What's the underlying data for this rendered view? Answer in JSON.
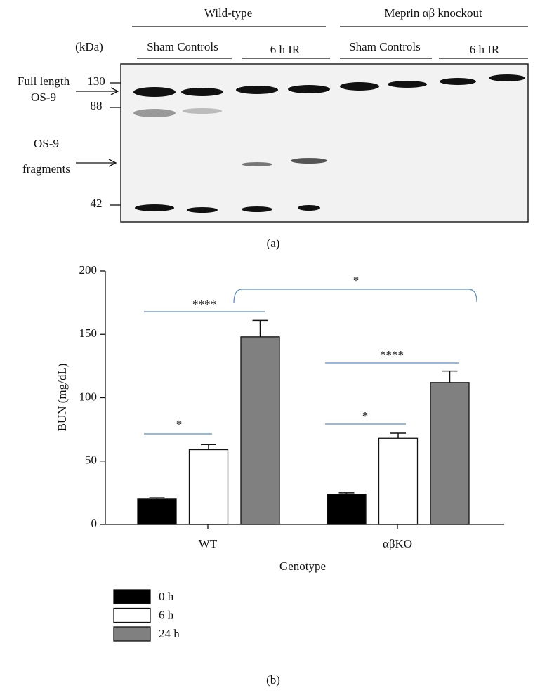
{
  "blot": {
    "groups": [
      "Wild-type",
      "Meprin αβ knockout"
    ],
    "unit": "(kDa)",
    "lanes": [
      "Sham Controls",
      "6 h IR",
      "Sham Controls",
      "6 h IR"
    ],
    "markers": [
      130,
      88,
      42
    ],
    "band_labels": [
      [
        "Full length",
        "OS-9"
      ],
      [
        "OS-9",
        "fragments"
      ]
    ],
    "panel_label": "(a)"
  },
  "chart_data": {
    "type": "bar",
    "categories": [
      "WT",
      "αβKO"
    ],
    "xlabel": "Genotype",
    "ylabel": "BUN (mg/dL)",
    "ylim": [
      0,
      200
    ],
    "yticks": [
      0,
      50,
      100,
      150,
      200
    ],
    "series": [
      {
        "name": "0 h",
        "color": "#000000",
        "values": [
          20,
          24
        ],
        "errors": [
          1,
          1
        ]
      },
      {
        "name": "6 h",
        "color": "#ffffff",
        "values": [
          59,
          68
        ],
        "errors": [
          4,
          4
        ]
      },
      {
        "name": "24 h",
        "color": "#808080",
        "values": [
          148,
          112
        ],
        "errors": [
          13,
          9
        ]
      }
    ],
    "annotations": [
      "****",
      "*",
      "****",
      "*",
      "*"
    ],
    "panel_label": "(b)"
  }
}
